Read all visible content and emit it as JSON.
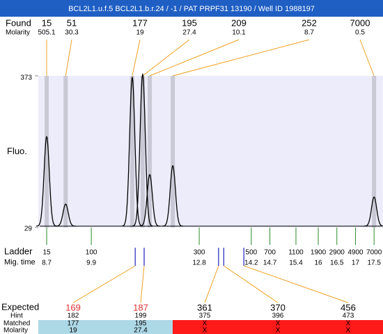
{
  "title": "BCL2L1.u.f.5  BCL2L1.b.r.24 / -1 / PAT PRPF31 13190 / Well ID 1988197",
  "found": {
    "label": "Found",
    "molarity_label": "Molarity",
    "peaks": [
      {
        "size": 15,
        "molarity": 505.1,
        "mig_time": 8.7,
        "fluo": 232
      },
      {
        "size": 51,
        "molarity": 30.3,
        "mig_time": 9.21,
        "fluo": 79
      },
      {
        "size": 177,
        "molarity": 19,
        "mig_time": 11.0,
        "fluo": 366
      },
      {
        "size": 195,
        "molarity": 27.4,
        "mig_time": 11.28,
        "fluo": 373
      },
      {
        "size": 209,
        "molarity": 10.1,
        "mig_time": 11.47,
        "fluo": 146
      },
      {
        "size": 252,
        "molarity": 8.7,
        "mig_time": 12.09,
        "fluo": 166
      },
      {
        "size": 7000,
        "molarity": 0.5,
        "mig_time": 17.5,
        "fluo": 95
      }
    ]
  },
  "axis": {
    "label": "Fluo.",
    "ylim": [
      29,
      373
    ],
    "yticks": [
      29,
      373
    ],
    "xlim": [
      8.475,
      17.74
    ]
  },
  "ladder": {
    "label": "Ladder",
    "mig_label": "Mig. time",
    "sizes": [
      15,
      100,
      300,
      500,
      700,
      1100,
      1900,
      2900,
      4900,
      7000
    ],
    "mig_times": [
      8.7,
      9.9,
      12.8,
      14.2,
      14.7,
      15.4,
      16,
      16.5,
      17,
      17.5
    ]
  },
  "expected": {
    "label": "Expected",
    "hint_label": "Hint",
    "matched_label": "Matched",
    "molarity_label": "Molarity",
    "matched_color": "#add8e6",
    "unmatched_color": "#ff1a1a",
    "highlight_color": "#e03030",
    "items": [
      {
        "size": 169,
        "hint": 182,
        "matched": 177,
        "molarity": 19,
        "mig_time": 11.08,
        "ok": true
      },
      {
        "size": 187,
        "hint": 199,
        "matched": 195,
        "molarity": 27.4,
        "mig_time": 11.32,
        "ok": true
      },
      {
        "size": 361,
        "hint": 375,
        "matched": "X",
        "molarity": "X",
        "mig_time": 13.32,
        "ok": false
      },
      {
        "size": 370,
        "hint": 396,
        "matched": "X",
        "molarity": "X",
        "mig_time": 13.46,
        "ok": false
      },
      {
        "size": 456,
        "hint": 473,
        "matched": "X",
        "molarity": "X",
        "mig_time": 14.0,
        "ok": false
      }
    ]
  }
}
